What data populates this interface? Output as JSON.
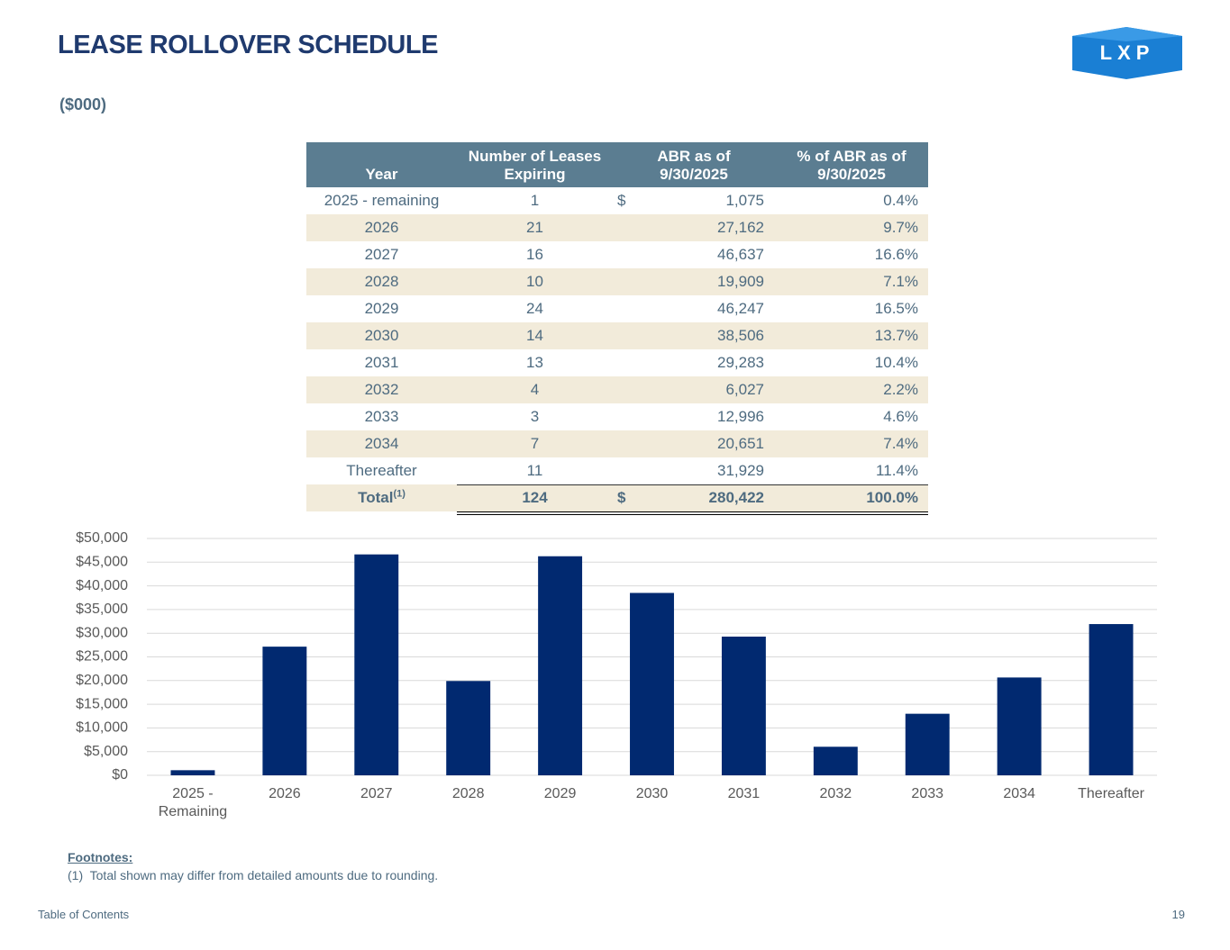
{
  "header": {
    "title": "LEASE ROLLOVER SCHEDULE",
    "subtitle": "($000)",
    "logo": "LXP"
  },
  "table": {
    "headers": [
      "Year",
      "Number of Leases Expiring",
      "ABR as of 9/30/2025",
      "% of ABR as of 9/30/2025"
    ],
    "rows": [
      {
        "year": "2025 - remaining",
        "leases": "1",
        "dollar": "$",
        "abr": "1,075",
        "pct": "0.4%"
      },
      {
        "year": "2026",
        "leases": "21",
        "abr": "27,162",
        "pct": "9.7%"
      },
      {
        "year": "2027",
        "leases": "16",
        "abr": "46,637",
        "pct": "16.6%"
      },
      {
        "year": "2028",
        "leases": "10",
        "abr": "19,909",
        "pct": "7.1%"
      },
      {
        "year": "2029",
        "leases": "24",
        "abr": "46,247",
        "pct": "16.5%"
      },
      {
        "year": "2030",
        "leases": "14",
        "abr": "38,506",
        "pct": "13.7%"
      },
      {
        "year": "2031",
        "leases": "13",
        "abr": "29,283",
        "pct": "10.4%"
      },
      {
        "year": "2032",
        "leases": "4",
        "abr": "6,027",
        "pct": "2.2%"
      },
      {
        "year": "2033",
        "leases": "3",
        "abr": "12,996",
        "pct": "4.6%"
      },
      {
        "year": "2034",
        "leases": "7",
        "abr": "20,651",
        "pct": "7.4%"
      },
      {
        "year": "Thereafter",
        "leases": "11",
        "abr": "31,929",
        "pct": "11.4%"
      }
    ],
    "total": {
      "year": "Total",
      "footnote_ref": "(1)",
      "leases": "124",
      "dollar": "$",
      "abr": "280,422",
      "pct": "100.0%"
    }
  },
  "chart_data": {
    "type": "bar",
    "categories": [
      "2025 - Remaining",
      "2026",
      "2027",
      "2028",
      "2029",
      "2030",
      "2031",
      "2032",
      "2033",
      "2034",
      "Thereafter"
    ],
    "values": [
      1075,
      27162,
      46637,
      19909,
      46247,
      38506,
      29283,
      6027,
      12996,
      20651,
      31929
    ],
    "color": "#012970",
    "ylim": [
      0,
      50000
    ],
    "yticks": [
      {
        "value": 0,
        "label": "$0"
      },
      {
        "value": 5000,
        "label": "$5,000"
      },
      {
        "value": 10000,
        "label": "$10,000"
      },
      {
        "value": 15000,
        "label": "$15,000"
      },
      {
        "value": 20000,
        "label": "$20,000"
      },
      {
        "value": 25000,
        "label": "$25,000"
      },
      {
        "value": 30000,
        "label": "$30,000"
      },
      {
        "value": 35000,
        "label": "$35,000"
      },
      {
        "value": 40000,
        "label": "$40,000"
      },
      {
        "value": 45000,
        "label": "$45,000"
      },
      {
        "value": 50000,
        "label": "$50,000"
      }
    ],
    "grid": true
  },
  "footnotes": {
    "heading": "Footnotes:",
    "items": [
      "(1)  Total shown may differ from detailed amounts due to rounding."
    ]
  },
  "footer": {
    "link": "Table of Contents",
    "page": "19"
  }
}
